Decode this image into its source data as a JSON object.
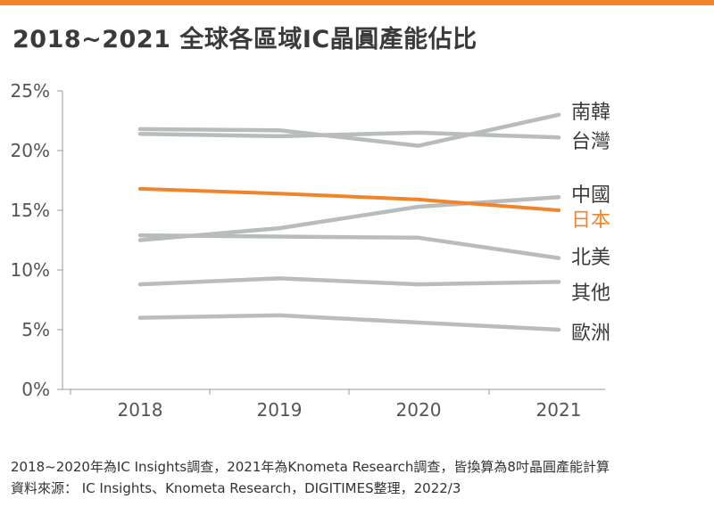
{
  "accent_color": "#f0842a",
  "title": "2018~2021 全球各區域IC晶圓產能佔比",
  "footer": {
    "line1": "2018~2020年為IC Insights調查，2021年為Knometa Research調查，皆換算為8吋晶圓產能計算",
    "line2": "資料來源： IC Insights、Knometa Research，DIGITIMES整理，2022/3"
  },
  "chart_data": {
    "type": "line",
    "title": "2018~2021 全球各區域IC晶圓產能佔比",
    "x": [
      "2018",
      "2019",
      "2020",
      "2021"
    ],
    "y_ticks": [
      "0%",
      "5%",
      "10%",
      "15%",
      "20%",
      "25%"
    ],
    "ylim": [
      0,
      25
    ],
    "grid": false,
    "legend": "inline labels at line ends (right)",
    "series": [
      {
        "name": "南韓",
        "values": [
          21.8,
          21.7,
          20.4,
          23.0
        ],
        "color": "#b9bcbd"
      },
      {
        "name": "台灣",
        "values": [
          21.4,
          21.2,
          21.5,
          21.1
        ],
        "color": "#b9bcbd"
      },
      {
        "name": "中國",
        "values": [
          12.5,
          13.5,
          15.3,
          16.1
        ],
        "color": "#b9bcbd"
      },
      {
        "name": "日本",
        "values": [
          16.8,
          16.4,
          15.9,
          15.0
        ],
        "color": "#f0842a"
      },
      {
        "name": "北美",
        "values": [
          12.9,
          12.8,
          12.7,
          11.0
        ],
        "color": "#b9bcbd"
      },
      {
        "name": "其他",
        "values": [
          8.8,
          9.3,
          8.8,
          9.0
        ],
        "color": "#b9bcbd"
      },
      {
        "name": "歐洲",
        "values": [
          6.0,
          6.2,
          5.6,
          5.0
        ],
        "color": "#b9bcbd"
      }
    ]
  }
}
